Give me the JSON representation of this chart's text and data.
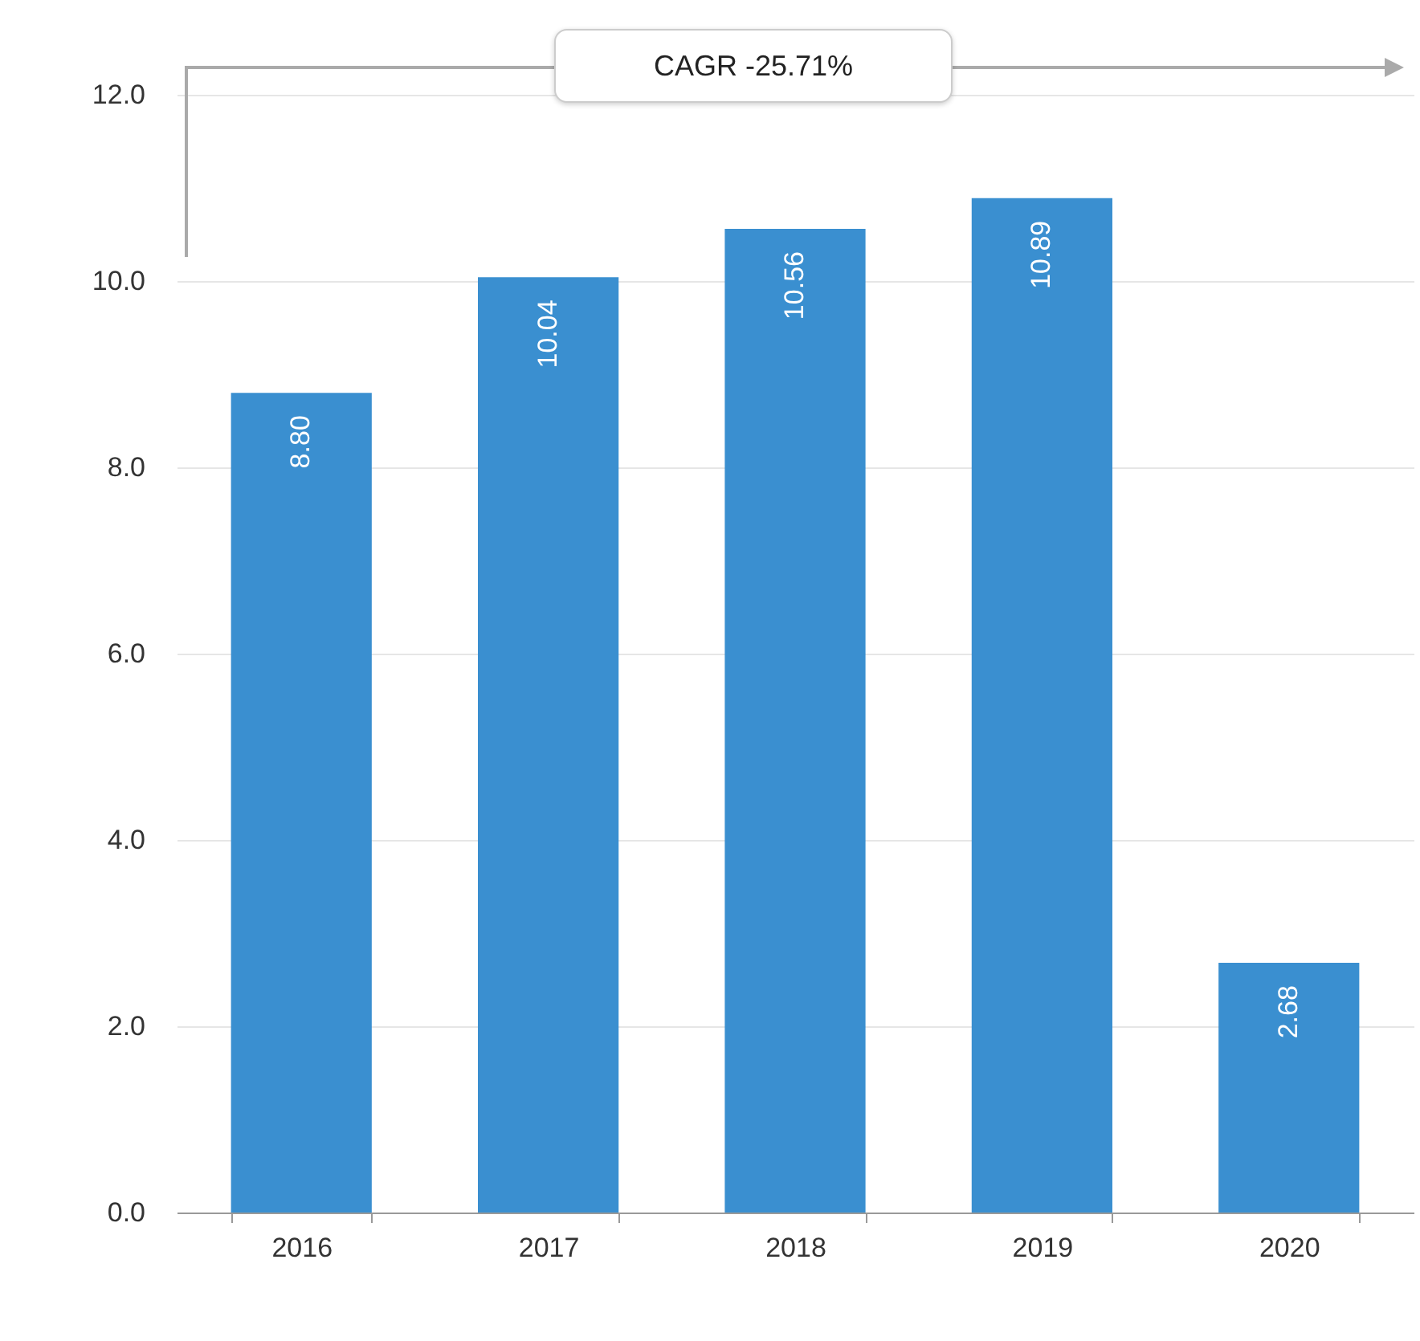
{
  "chart_data": {
    "type": "bar",
    "categories": [
      "2016",
      "2017",
      "2018",
      "2019",
      "2020"
    ],
    "values": [
      8.8,
      10.04,
      10.56,
      10.89,
      2.68
    ],
    "color": "#3a8fd0",
    "ylim": [
      0,
      12
    ],
    "yticks": [
      {
        "value": 0,
        "label": "0.0"
      },
      {
        "value": 2,
        "label": "2.0"
      },
      {
        "value": 4,
        "label": "4.0"
      },
      {
        "value": 6,
        "label": "6.0"
      },
      {
        "value": 8,
        "label": "8.0"
      },
      {
        "value": 10,
        "label": "10.0"
      },
      {
        "value": 12,
        "label": "12.0"
      }
    ],
    "grid": "y",
    "value_labels": [
      "8.80",
      "10.04",
      "10.56",
      "10.89",
      "2.68"
    ],
    "annotations": [
      "CAGR -25.71%"
    ]
  }
}
